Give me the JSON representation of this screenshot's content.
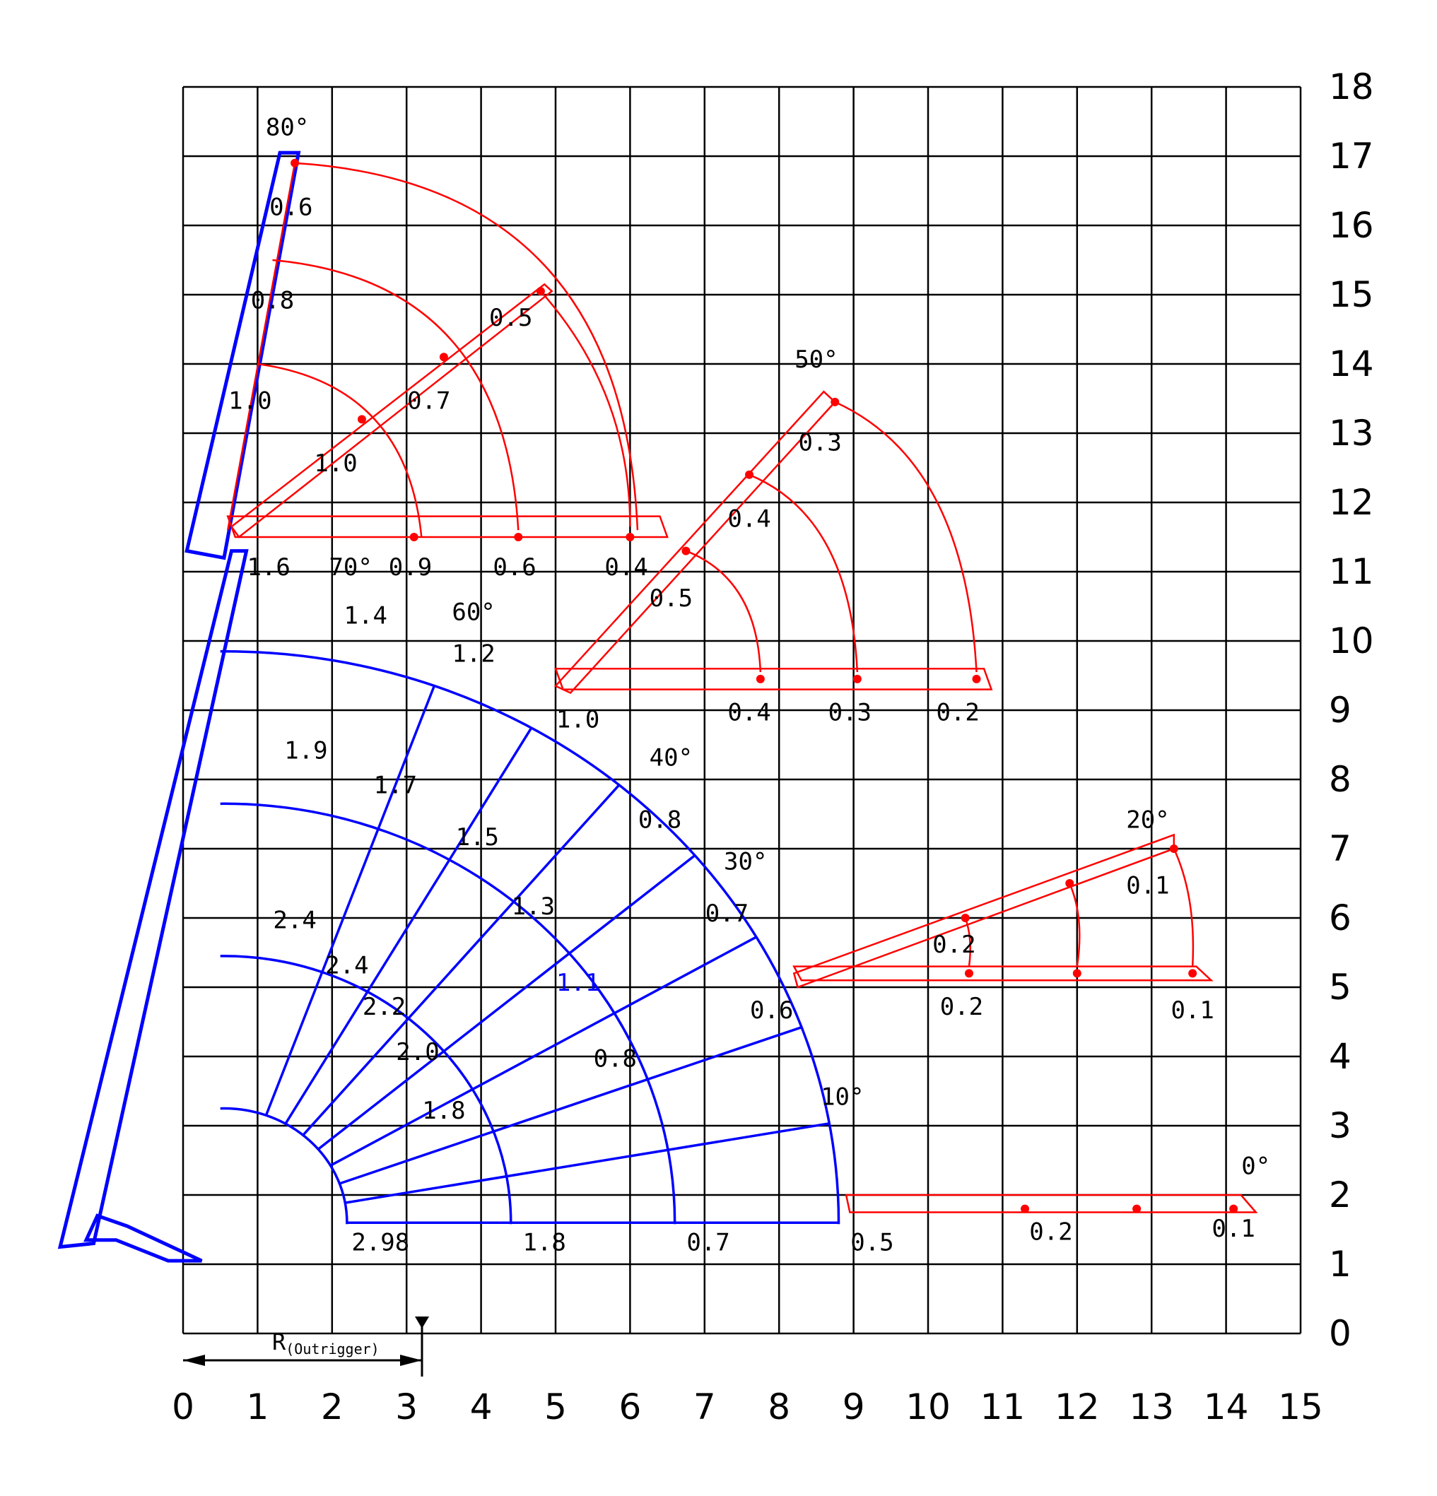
{
  "chart_data": {
    "type": "load-chart",
    "x_axis": {
      "ticks": [
        "0",
        "1",
        "2",
        "3",
        "4",
        "5",
        "6",
        "7",
        "8",
        "9",
        "10",
        "11",
        "12",
        "13",
        "14",
        "15"
      ],
      "range": [
        0,
        15
      ]
    },
    "y_axis": {
      "ticks": [
        "0",
        "1",
        "2",
        "3",
        "4",
        "5",
        "6",
        "7",
        "8",
        "9",
        "10",
        "11",
        "12",
        "13",
        "14",
        "15",
        "16",
        "17",
        "18"
      ],
      "range": [
        0,
        18
      ]
    },
    "grid": true,
    "outrigger": {
      "label_main": "R",
      "label_sub": "(Outrigger)",
      "value": 3.2
    },
    "colors": {
      "main": "#0000ff",
      "jib": "#ff0000",
      "grid": "#000000"
    },
    "main_boom": {
      "pivot": [
        0.55,
        1.6
      ],
      "arcs": [
        {
          "radius": 1.65,
          "label_at_base": "2.98",
          "base_x": 2.2
        },
        {
          "radius": 3.85,
          "label_at_base": "1.8",
          "base_x": 4.4
        },
        {
          "radius": 6.05,
          "label_at_base": "0.7",
          "base_x": 6.6
        },
        {
          "radius": 8.25,
          "label_at_base": "0.5",
          "base_x": 8.8
        }
      ],
      "angle_labels": [
        "10°",
        "30°",
        "40°",
        "60°",
        "70°",
        "80°"
      ],
      "load_values": [
        {
          "text": "1.6",
          "x": 1.15,
          "y": 10.95
        },
        {
          "text": "1.4",
          "x": 2.45,
          "y": 10.25
        },
        {
          "text": "1.2",
          "x": 3.9,
          "y": 9.7
        },
        {
          "text": "1.0",
          "x": 5.3,
          "y": 8.75
        },
        {
          "text": "0.8",
          "x": 6.4,
          "y": 7.3
        },
        {
          "text": "0.7",
          "x": 7.3,
          "y": 5.95
        },
        {
          "text": "0.6",
          "x": 7.9,
          "y": 4.55
        },
        {
          "text": "1.9",
          "x": 1.65,
          "y": 8.3
        },
        {
          "text": "1.7",
          "x": 2.85,
          "y": 7.8
        },
        {
          "text": "1.5",
          "x": 3.95,
          "y": 7.05
        },
        {
          "text": "1.3",
          "x": 4.7,
          "y": 6.05
        },
        {
          "text": "1.1",
          "x": 5.3,
          "y": 4.95,
          "blue": true
        },
        {
          "text": "0.8",
          "x": 5.8,
          "y": 3.85
        },
        {
          "text": "2.4",
          "x": 1.5,
          "y": 5.85
        },
        {
          "text": "2.4",
          "x": 2.2,
          "y": 5.2
        },
        {
          "text": "2.2",
          "x": 2.7,
          "y": 4.6
        },
        {
          "text": "2.0",
          "x": 3.15,
          "y": 3.95
        },
        {
          "text": "1.8",
          "x": 3.5,
          "y": 3.1
        }
      ]
    },
    "jib_ranges": [
      {
        "label": "80°",
        "loads": [
          "0.6",
          "0.8",
          "1.0",
          "1.0",
          "0.7",
          "0.5",
          "0.9",
          "0.6",
          "0.4"
        ]
      },
      {
        "label": "50°",
        "loads": [
          "0.3",
          "0.4",
          "0.5",
          "0.4",
          "0.3",
          "0.2"
        ]
      },
      {
        "label": "20°",
        "loads": [
          "0.1",
          "0.2",
          "0.2",
          "0.1"
        ]
      },
      {
        "label": "0°",
        "loads": [
          "0.2",
          "0.1"
        ]
      }
    ],
    "jib_load_values": [
      {
        "text": "0.6",
        "x": 1.45,
        "y": 16.15
      },
      {
        "text": "0.8",
        "x": 1.2,
        "y": 14.8
      },
      {
        "text": "1.0",
        "x": 0.9,
        "y": 13.35
      },
      {
        "text": "1.0",
        "x": 2.05,
        "y": 12.45
      },
      {
        "text": "0.7",
        "x": 3.3,
        "y": 13.35
      },
      {
        "text": "0.5",
        "x": 4.4,
        "y": 14.55
      },
      {
        "text": "0.9",
        "x": 3.05,
        "y": 10.95
      },
      {
        "text": "0.6",
        "x": 4.45,
        "y": 10.95
      },
      {
        "text": "0.4",
        "x": 5.95,
        "y": 10.95
      },
      {
        "text": "0.3",
        "x": 8.55,
        "y": 12.75
      },
      {
        "text": "0.4",
        "x": 7.6,
        "y": 11.65
      },
      {
        "text": "0.5",
        "x": 6.55,
        "y": 10.5
      },
      {
        "text": "0.4",
        "x": 7.6,
        "y": 8.85
      },
      {
        "text": "0.3",
        "x": 8.95,
        "y": 8.85
      },
      {
        "text": "0.2",
        "x": 10.4,
        "y": 8.85
      },
      {
        "text": "0.1",
        "x": 12.95,
        "y": 6.35
      },
      {
        "text": "0.2",
        "x": 10.35,
        "y": 5.5
      },
      {
        "text": "0.2",
        "x": 10.45,
        "y": 4.6
      },
      {
        "text": "0.1",
        "x": 13.55,
        "y": 4.55
      },
      {
        "text": "0.2",
        "x": 11.65,
        "y": 1.35
      },
      {
        "text": "0.1",
        "x": 14.1,
        "y": 1.4
      }
    ],
    "angle_positions": [
      {
        "text": "80°",
        "x": 1.4,
        "y": 17.3
      },
      {
        "text": "70°",
        "x": 2.25,
        "y": 10.95
      },
      {
        "text": "60°",
        "x": 3.9,
        "y": 10.3
      },
      {
        "text": "50°",
        "x": 8.5,
        "y": 13.95
      },
      {
        "text": "40°",
        "x": 6.55,
        "y": 8.2
      },
      {
        "text": "30°",
        "x": 7.55,
        "y": 6.7
      },
      {
        "text": "20°",
        "x": 12.95,
        "y": 7.3
      },
      {
        "text": "10°",
        "x": 8.85,
        "y": 3.3
      },
      {
        "text": "0°",
        "x": 14.4,
        "y": 2.3
      }
    ]
  }
}
